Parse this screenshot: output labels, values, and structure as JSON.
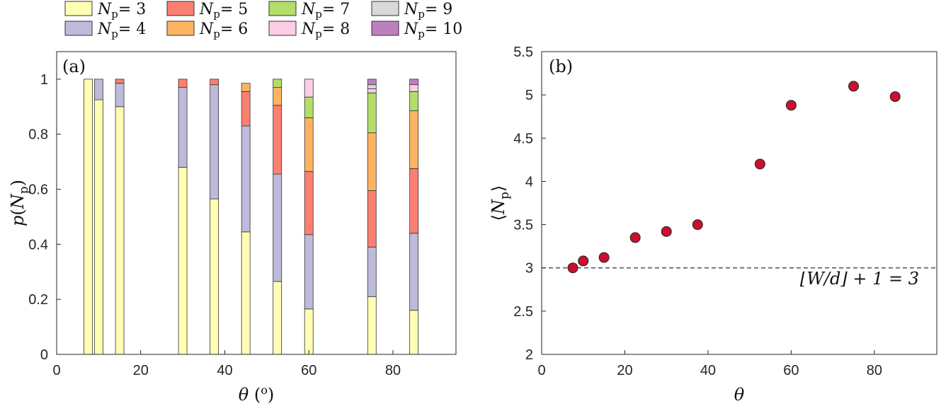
{
  "legend": {
    "items": [
      {
        "label": "N",
        "sub": "p",
        "eq": "= 3",
        "color": "#ffffb3"
      },
      {
        "label": "N",
        "sub": "p",
        "eq": "= 5",
        "color": "#fb8072"
      },
      {
        "label": "N",
        "sub": "p",
        "eq": "= 7",
        "color": "#b3de69"
      },
      {
        "label": "N",
        "sub": "p",
        "eq": "= 9",
        "color": "#d9d9d9"
      },
      {
        "label": "N",
        "sub": "p",
        "eq": "= 4",
        "color": "#bebada"
      },
      {
        "label": "N",
        "sub": "p",
        "eq": "= 6",
        "color": "#fdb462"
      },
      {
        "label": "N",
        "sub": "p",
        "eq": "= 8",
        "color": "#fccde5"
      },
      {
        "label": "N",
        "sub": "p",
        "eq": "= 10",
        "color": "#bc80bd"
      }
    ]
  },
  "chart_data": [
    {
      "type": "bar",
      "stacked": true,
      "panel_label": "(a)",
      "xlabel": "θ (º)",
      "ylabel": "p(N_p)",
      "xlim": [
        0,
        95
      ],
      "ylim": [
        0,
        1.1
      ],
      "xticks": [
        0,
        20,
        40,
        60,
        80
      ],
      "yticks": [
        0,
        0.2,
        0.4,
        0.6,
        0.8,
        1
      ],
      "x": [
        7.5,
        10,
        15,
        30,
        37.5,
        45,
        52.5,
        60,
        75,
        85
      ],
      "series": [
        {
          "name": "N_p = 3",
          "color": "#ffffb3",
          "values": [
            1.0,
            0.925,
            0.9,
            0.68,
            0.565,
            0.445,
            0.265,
            0.165,
            0.21,
            0.16
          ]
        },
        {
          "name": "N_p = 4",
          "color": "#bebada",
          "values": [
            0.0,
            0.075,
            0.085,
            0.29,
            0.415,
            0.385,
            0.39,
            0.27,
            0.18,
            0.28
          ]
        },
        {
          "name": "N_p = 5",
          "color": "#fb8072",
          "values": [
            0.0,
            0.0,
            0.015,
            0.03,
            0.02,
            0.125,
            0.25,
            0.23,
            0.205,
            0.235
          ]
        },
        {
          "name": "N_p = 6",
          "color": "#fdb462",
          "values": [
            0.0,
            0.0,
            0.0,
            0.0,
            0.0,
            0.03,
            0.065,
            0.195,
            0.21,
            0.21
          ]
        },
        {
          "name": "N_p = 7",
          "color": "#b3de69",
          "values": [
            0.0,
            0.0,
            0.0,
            0.0,
            0.0,
            0.0,
            0.03,
            0.075,
            0.145,
            0.07
          ]
        },
        {
          "name": "N_p = 8",
          "color": "#fccde5",
          "values": [
            0.0,
            0.0,
            0.0,
            0.0,
            0.0,
            0.0,
            0.0,
            0.065,
            0.015,
            0.025
          ]
        },
        {
          "name": "N_p = 9",
          "color": "#d9d9d9",
          "values": [
            0.0,
            0.0,
            0.0,
            0.0,
            0.0,
            0.0,
            0.0,
            0.0,
            0.015,
            0.0
          ]
        },
        {
          "name": "N_p = 10",
          "color": "#bc80bd",
          "values": [
            0.0,
            0.0,
            0.0,
            0.0,
            0.0,
            0.0,
            0.0,
            0.0,
            0.02,
            0.02
          ]
        }
      ]
    },
    {
      "type": "scatter",
      "panel_label": "(b)",
      "xlabel": "θ",
      "ylabel": "⟨N_p⟩",
      "xlim": [
        0,
        95
      ],
      "ylim": [
        2,
        5.5
      ],
      "xticks": [
        0,
        20,
        40,
        60,
        80
      ],
      "yticks": [
        2,
        2.5,
        3,
        3.5,
        4,
        4.5,
        5,
        5.5
      ],
      "marker_color": "#c8102e",
      "x": [
        7.5,
        10,
        15,
        22.5,
        30,
        37.5,
        52.5,
        60,
        75,
        85
      ],
      "y": [
        3.0,
        3.08,
        3.12,
        3.35,
        3.42,
        3.5,
        4.2,
        4.88,
        5.1,
        4.98
      ],
      "reference_line": {
        "y": 3,
        "style": "dashed",
        "label": "⌊W/d⌋ + 1 = 3"
      }
    }
  ]
}
